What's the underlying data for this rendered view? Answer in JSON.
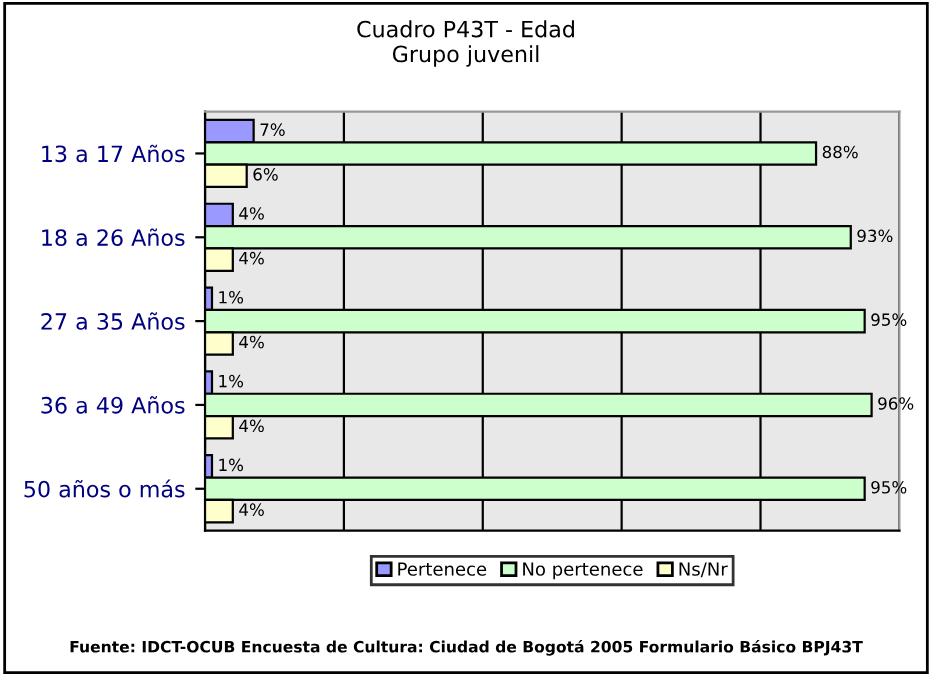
{
  "chart_data": {
    "type": "bar",
    "orientation": "horizontal",
    "title": "Cuadro P43T - Edad\nGrupo juvenil",
    "categories": [
      "13 a 17 Años",
      "18 a 26 Años",
      "27 a 35 Años",
      "36 a 49 Años",
      "50 años o más"
    ],
    "series": [
      {
        "name": "Pertenece",
        "color": "#9999ff",
        "values": [
          7,
          4,
          1,
          1,
          1
        ],
        "value_labels": [
          "7%",
          "4%",
          "1%",
          "1%",
          "1%"
        ]
      },
      {
        "name": "No pertenece",
        "color": "#ccffcc",
        "values": [
          88,
          93,
          95,
          96,
          95
        ],
        "value_labels": [
          "88%",
          "93%",
          "95%",
          "96%",
          "95%"
        ]
      },
      {
        "name": "Ns/Nr",
        "color": "#ffffcc",
        "values": [
          6,
          4,
          4,
          4,
          4
        ],
        "value_labels": [
          "6%",
          "4%",
          "4%",
          "4%",
          "4%"
        ]
      }
    ],
    "xlim": [
      0,
      100
    ],
    "xticks": [
      {
        "value": 0,
        "label": null
      },
      {
        "value": 20,
        "label": null
      },
      {
        "value": 40,
        "label": null
      },
      {
        "value": 60,
        "label": null
      },
      {
        "value": 80,
        "label": null
      },
      {
        "value": 100,
        "label": null
      }
    ],
    "tick_labels": "y",
    "grid": "x",
    "legend": "bottom",
    "annotations": [
      "Fuente: IDCT-OCUB Encuesta de Cultura: Ciudad de Bogotá 2005 Formulario Básico BPJ43T"
    ]
  }
}
